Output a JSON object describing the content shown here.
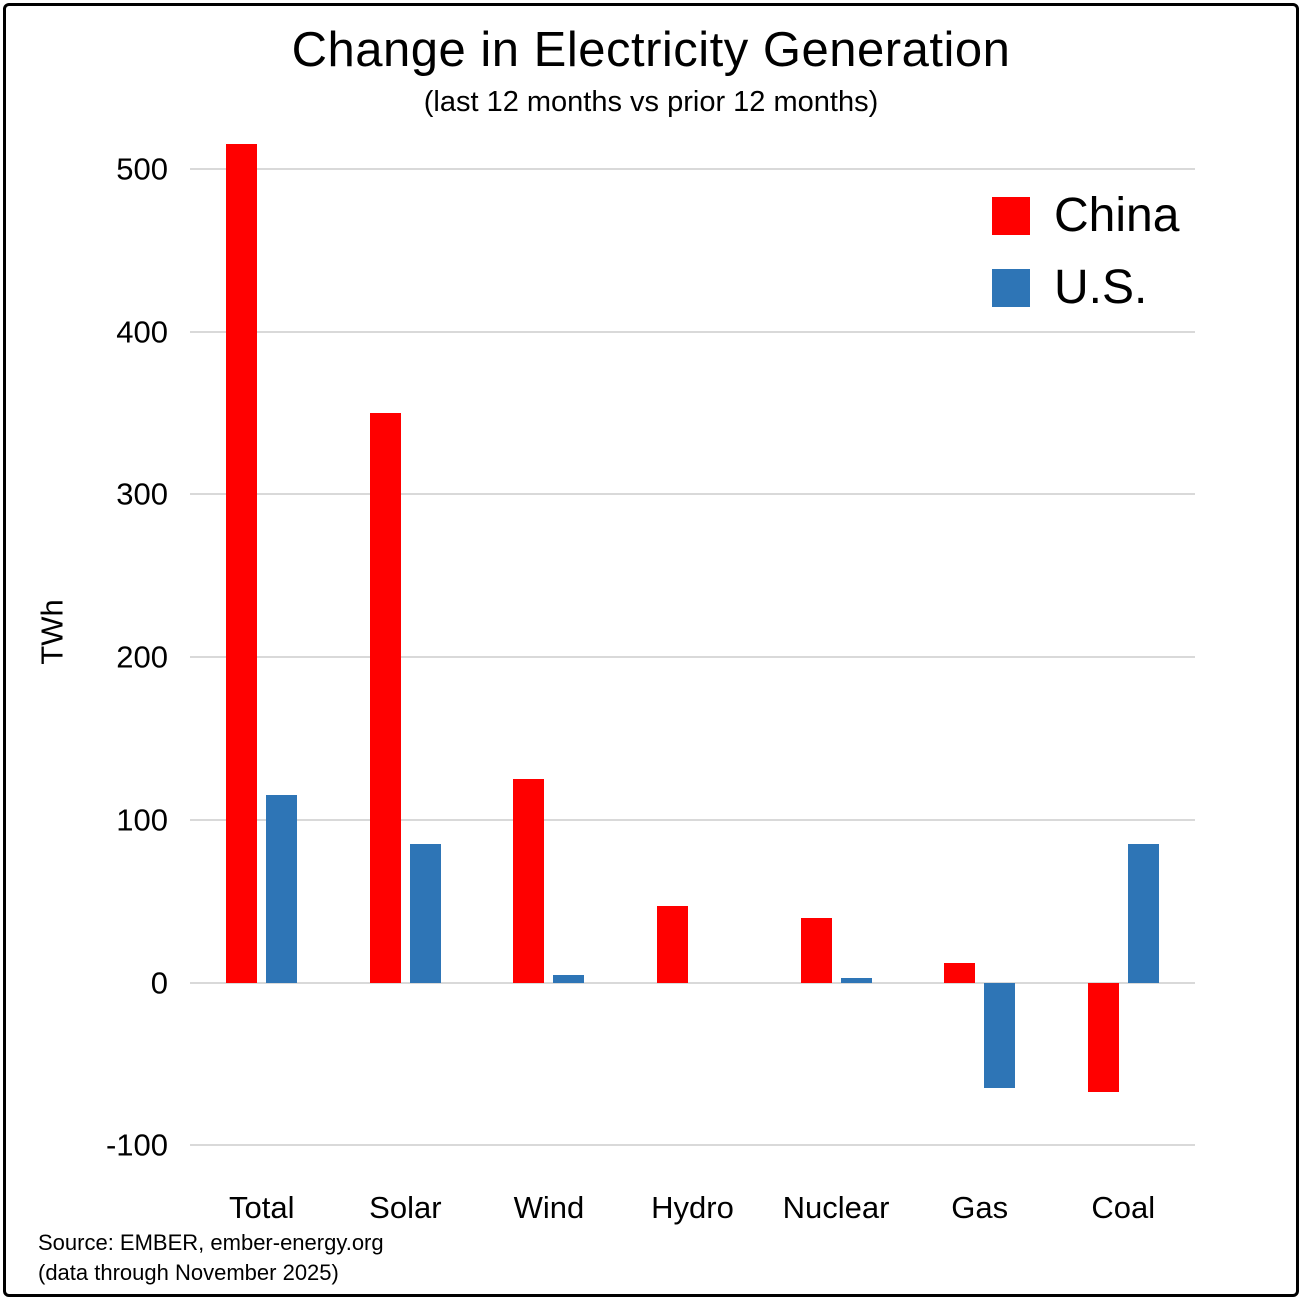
{
  "source_line1": "Source: EMBER, ember-energy.org",
  "source_line2": "(data through November 2025)",
  "chart_data": {
    "type": "bar",
    "title": "Change in Electricity Generation",
    "subtitle": "(last 12 months vs prior 12 months)",
    "ylabel": "TWh",
    "xlabel": "",
    "categories": [
      "Total",
      "Solar",
      "Wind",
      "Hydro",
      "Nuclear",
      "Gas",
      "Coal"
    ],
    "series": [
      {
        "name": "China",
        "color": "#FF0000",
        "values": [
          515,
          350,
          125,
          47,
          40,
          12,
          -67
        ]
      },
      {
        "name": "U.S.",
        "color": "#2E75B6",
        "values": [
          115,
          85,
          5,
          0,
          3,
          -65,
          85
        ]
      }
    ],
    "ylim": [
      -120,
      530
    ],
    "yticks": [
      -100,
      0,
      100,
      200,
      300,
      400,
      500
    ],
    "grid": "horizontal",
    "gridline_color": "#d9d9d9",
    "legend_position": "top-right"
  }
}
